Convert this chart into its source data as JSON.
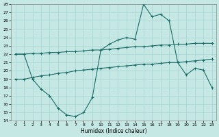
{
  "xlabel": "Humidex (Indice chaleur)",
  "background_color": "#c5e8e5",
  "grid_color": "#a8d5d1",
  "line_color": "#1a6b65",
  "xlim": [
    -0.5,
    23.5
  ],
  "ylim": [
    14,
    28
  ],
  "yticks": [
    14,
    15,
    16,
    17,
    18,
    19,
    20,
    21,
    22,
    23,
    24,
    25,
    26,
    27,
    28
  ],
  "xticks": [
    0,
    1,
    2,
    3,
    4,
    5,
    6,
    7,
    8,
    9,
    10,
    11,
    12,
    13,
    14,
    15,
    16,
    17,
    18,
    19,
    20,
    21,
    22,
    23
  ],
  "line_main_x": [
    0,
    1,
    2,
    3,
    4,
    5,
    6,
    7,
    8,
    9,
    10,
    11,
    12,
    13,
    14,
    15,
    16,
    17,
    18,
    19,
    20,
    21,
    22,
    23
  ],
  "line_main_y": [
    22,
    22,
    19,
    17.8,
    17,
    15.5,
    14.7,
    14.5,
    15.0,
    16.8,
    22.5,
    23.2,
    23.7,
    24.0,
    23.8,
    28.0,
    26.5,
    26.8,
    26.0,
    21.0,
    19.5,
    20.3,
    20.1,
    18.0
  ],
  "line_upper_x": [
    0,
    1,
    2,
    3,
    4,
    5,
    6,
    7,
    8,
    9,
    10,
    11,
    12,
    13,
    14,
    15,
    16,
    17,
    18,
    19,
    20,
    21,
    22,
    23
  ],
  "line_upper_y": [
    22.0,
    22.0,
    22.1,
    22.1,
    22.2,
    22.2,
    22.3,
    22.3,
    22.4,
    22.5,
    22.5,
    22.6,
    22.7,
    22.8,
    22.9,
    22.9,
    23.0,
    23.1,
    23.1,
    23.2,
    23.2,
    23.3,
    23.3,
    23.3
  ],
  "line_lower_x": [
    0,
    1,
    2,
    3,
    4,
    5,
    6,
    7,
    8,
    9,
    10,
    11,
    12,
    13,
    14,
    15,
    16,
    17,
    18,
    19,
    20,
    21,
    22,
    23
  ],
  "line_lower_y": [
    19.0,
    19.0,
    19.2,
    19.4,
    19.5,
    19.7,
    19.8,
    20.0,
    20.1,
    20.2,
    20.3,
    20.4,
    20.5,
    20.6,
    20.7,
    20.8,
    20.8,
    20.9,
    21.0,
    21.0,
    21.1,
    21.2,
    21.3,
    21.4
  ]
}
